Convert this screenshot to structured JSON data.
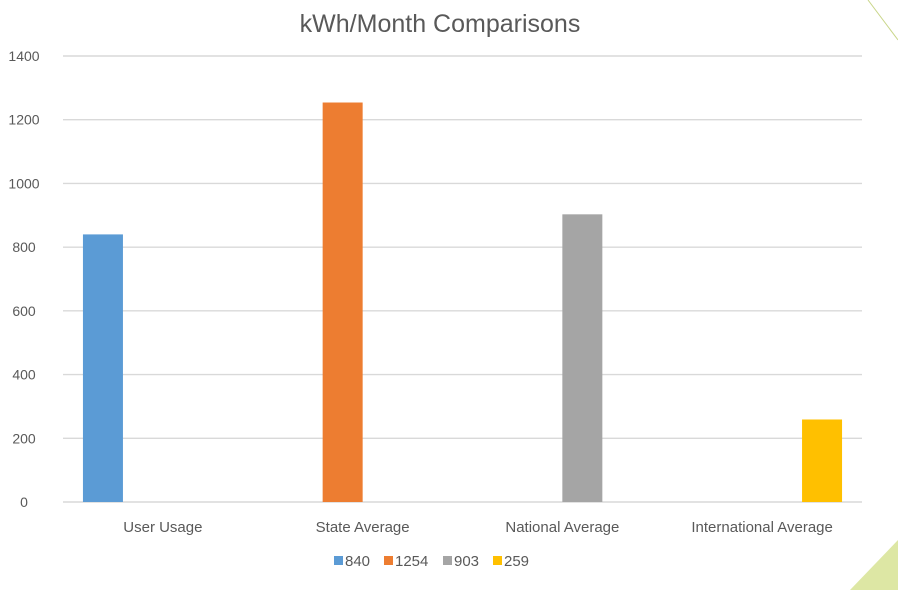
{
  "chart_data": {
    "type": "bar",
    "title": "kWh/Month Comparisons",
    "xlabel": "",
    "ylabel": "",
    "categories": [
      "User Usage",
      "State Average",
      "National Average",
      "International Average"
    ],
    "series": [
      {
        "name": "840",
        "color": "#5b9bd5",
        "values": [
          840,
          null,
          null,
          null
        ]
      },
      {
        "name": "1254",
        "color": "#ed7d31",
        "values": [
          null,
          1254,
          null,
          null
        ]
      },
      {
        "name": "903",
        "color": "#a5a5a5",
        "values": [
          null,
          null,
          903,
          null
        ]
      },
      {
        "name": "259",
        "color": "#ffc000",
        "values": [
          null,
          null,
          null,
          259
        ]
      }
    ],
    "ylim": [
      0,
      1400
    ],
    "yticks": [
      0,
      200,
      400,
      600,
      800,
      1000,
      1200,
      1400
    ],
    "grid": true,
    "legend_position": "bottom"
  }
}
